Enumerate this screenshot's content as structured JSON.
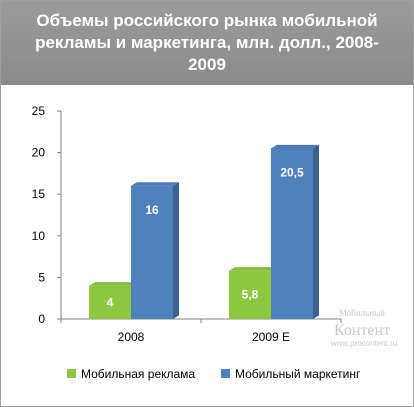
{
  "chart_data": {
    "type": "bar",
    "title": "Объемы российского рынка мобильной рекламы и маркетинга, млн. долл., 2008-2009",
    "categories": [
      "2008",
      "2009 Е"
    ],
    "series": [
      {
        "name": "Мобильная реклама",
        "values": [
          4,
          5.8
        ],
        "labels": [
          "4",
          "5,8"
        ],
        "color": "#8dc63f"
      },
      {
        "name": "Мобильный маркетинг",
        "values": [
          16,
          20.5
        ],
        "labels": [
          "16",
          "20,5"
        ],
        "color": "#4f81bd"
      }
    ],
    "ylim": [
      0,
      25
    ],
    "yticks": [
      0,
      5,
      10,
      15,
      20,
      25
    ],
    "xlabel": "",
    "ylabel": "",
    "grid": false,
    "legend": "bottom"
  },
  "watermark": {
    "line1": "Мобильный",
    "line2": "Контент",
    "url": "www.procontent.ru"
  }
}
